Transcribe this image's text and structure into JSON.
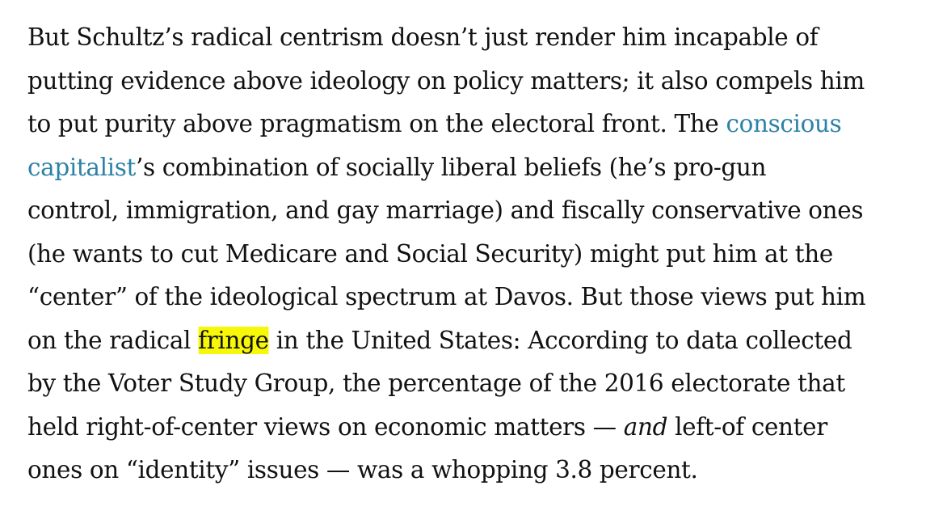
{
  "lines": [
    {
      "text": "But Schultz’s radical centrism doesn’t just render him incapable of"
    },
    {
      "text": "putting evidence above ideology on policy matters; it also compels him"
    },
    {
      "pre": "to put purity above pragmatism on the electoral front. The ",
      "link": "conscious"
    },
    {
      "link": "capitalist",
      "post": "’s combination of socially liberal beliefs (he’s pro-gun"
    },
    {
      "text": "control, immigration, and gay marriage) and fiscally conservative ones"
    },
    {
      "text": "(he wants to cut Medicare and Social Security) might put him at the"
    },
    {
      "text": "“center” of the ideological spectrum at Davos. But those views put him"
    },
    {
      "pre": "on the radical ",
      "highlight": "fringe",
      "post": " in the United States: According to data collected"
    },
    {
      "text": "by the Voter Study Group, the percentage of the 2016 electorate that"
    },
    {
      "pre": "held right-of-center views on economic matters — ",
      "em": "and",
      "post": " left-of center"
    },
    {
      "text": "ones on “identity” issues — was a whopping 3.8 percent."
    }
  ],
  "colors": {
    "text": "#111111",
    "link": "#2c82a6",
    "highlight": "#f7f70a",
    "background": "#ffffff"
  }
}
